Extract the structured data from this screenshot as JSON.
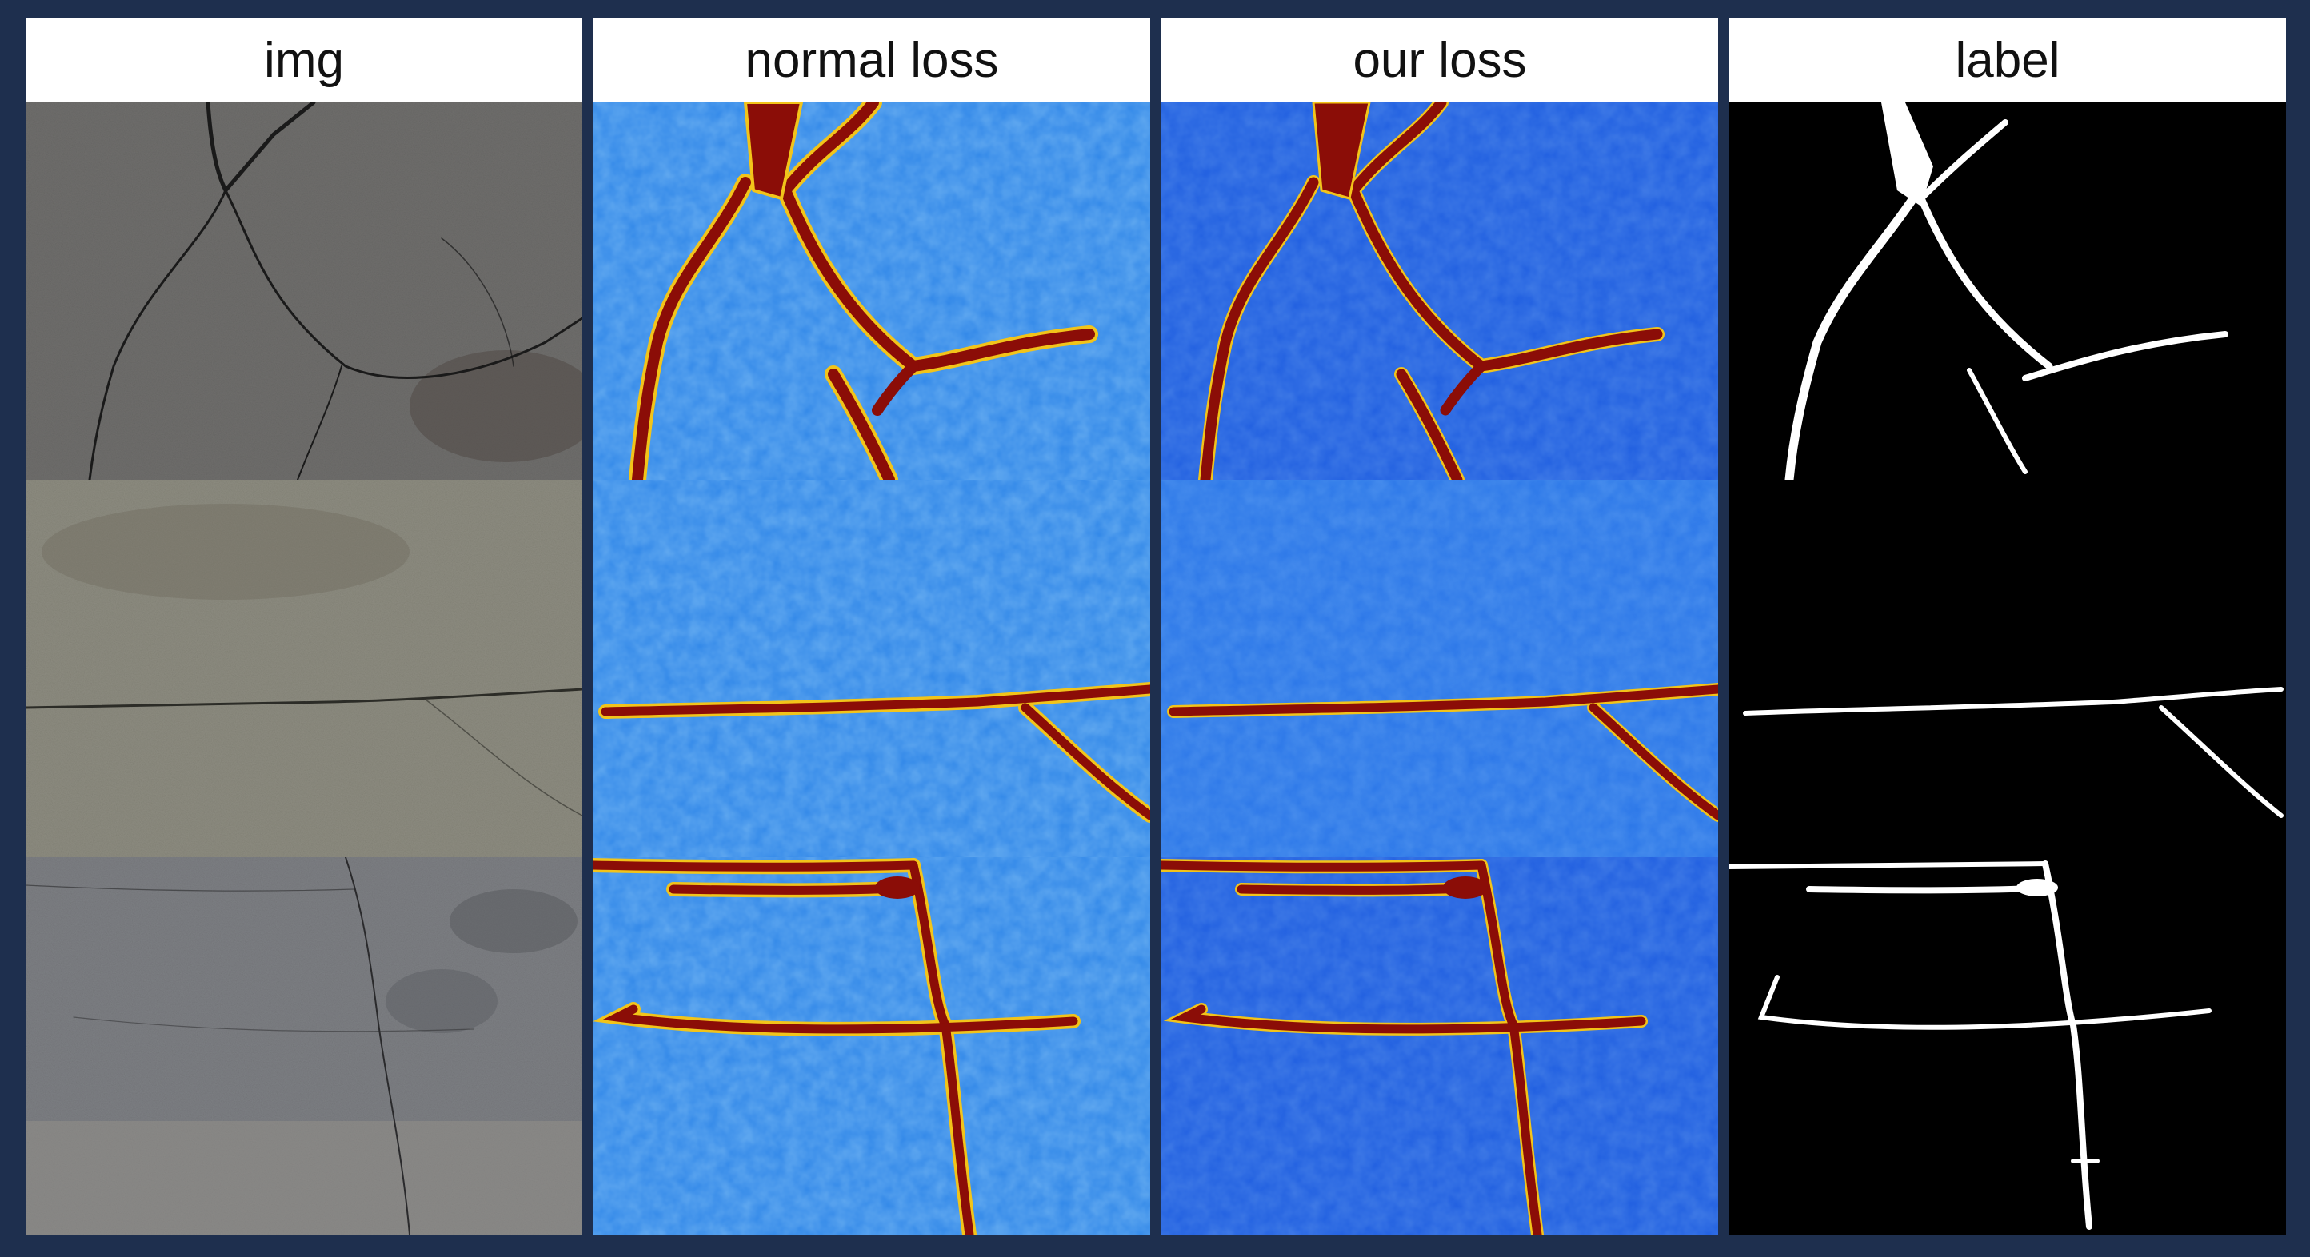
{
  "columns": [
    {
      "key": "img",
      "label": "img"
    },
    {
      "key": "normal",
      "label": "normal loss"
    },
    {
      "key": "ours",
      "label": "our loss"
    },
    {
      "key": "label",
      "label": "label"
    }
  ],
  "colors": {
    "frame": "#1e2f4e",
    "heatmap_background": "#2f86e8",
    "heatmap_background_ours": "#1f5ee0",
    "heatmap_crack": "#8b0d07",
    "heatmap_edge": "#f2c41a",
    "label_background": "#000000",
    "label_crack": "#ffffff"
  }
}
